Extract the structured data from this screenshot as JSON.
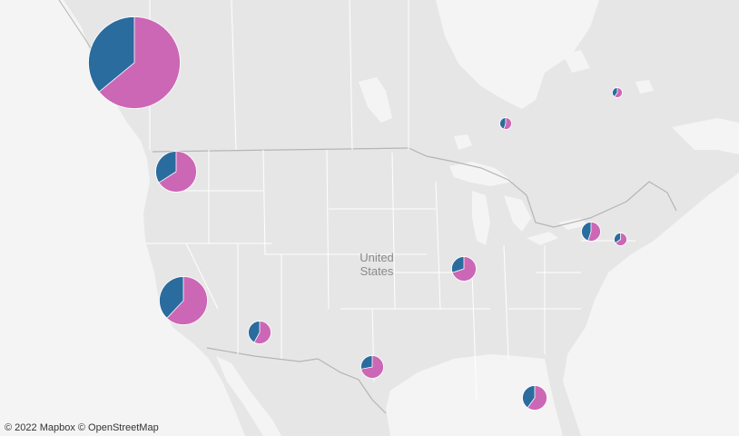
{
  "map": {
    "country_label_line1": "United",
    "country_label_line2": "States",
    "attribution": {
      "mapbox": "© 2022 Mapbox",
      "osm": "© OpenStreetMap"
    },
    "colors": {
      "land": "#e6e6e6",
      "water": "#f4f4f4",
      "border": "#b5b5b5",
      "state_line": "#ffffff"
    }
  },
  "pie_colors": {
    "series_a": "#2a6c9e",
    "series_b": "#cc67b5"
  },
  "pies": [
    {
      "id": "pie-british-columbia",
      "share_a": 0.36
    },
    {
      "id": "pie-oregon",
      "share_a": 0.34
    },
    {
      "id": "pie-california",
      "share_a": 0.38
    },
    {
      "id": "pie-arizona",
      "share_a": 0.42
    },
    {
      "id": "pie-texas",
      "share_a": 0.28
    },
    {
      "id": "pie-illinois",
      "share_a": 0.3
    },
    {
      "id": "pie-florida",
      "share_a": 0.4
    },
    {
      "id": "pie-ontario-great-lakes",
      "share_a": 0.45
    },
    {
      "id": "pie-new-england",
      "share_a": 0.35
    },
    {
      "id": "pie-northern-ontario",
      "share_a": 0.45
    },
    {
      "id": "pie-quebec",
      "share_a": 0.4
    }
  ]
}
